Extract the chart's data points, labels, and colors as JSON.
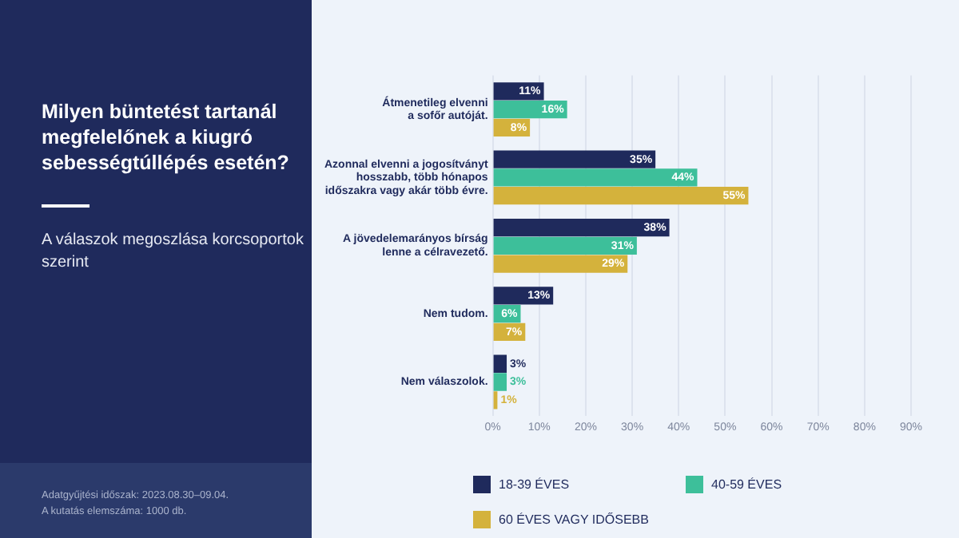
{
  "chart_data": {
    "type": "bar",
    "orientation": "horizontal",
    "title": "Milyen büntetést tartanál megfelelőnek a kiugró sebességtúllépés esetén?",
    "subtitle": "A válaszok megoszlása korcsoportok szerint",
    "categories": [
      "Átmenetileg elvenni\na sofőr autóját.",
      "Azonnal elvenni a jogosítványt\nhosszabb, több hónapos\nidőszakra vagy akár több évre.",
      "A jövedelemarányos bírság\nlenne a célravezető.",
      "Nem tudom.",
      "Nem válaszolok."
    ],
    "series": [
      {
        "name": "18-39 ÉVES",
        "color": "#1f2a5c",
        "values": [
          11,
          35,
          38,
          13,
          3
        ],
        "value_labels": [
          "11%",
          "35%",
          "38%",
          "13%",
          "3%"
        ]
      },
      {
        "name": "40-59 ÉVES",
        "color": "#3dbf9a",
        "values": [
          16,
          44,
          31,
          6,
          3
        ],
        "value_labels": [
          "16%",
          "44%",
          "31%",
          "6%",
          "3%"
        ]
      },
      {
        "name": "60 ÉVES VAGY IDŐSEBB",
        "color": "#d4b23c",
        "values": [
          8,
          55,
          29,
          7,
          1
        ],
        "value_labels": [
          "8%",
          "55%",
          "29%",
          "7%",
          "1%"
        ]
      }
    ],
    "xlim": [
      0,
      90
    ],
    "xticks": [
      {
        "value": 0,
        "label": "0%"
      },
      {
        "value": 10,
        "label": "10%"
      },
      {
        "value": 20,
        "label": "20%"
      },
      {
        "value": 30,
        "label": "30%"
      },
      {
        "value": 40,
        "label": "40%"
      },
      {
        "value": 50,
        "label": "50%"
      },
      {
        "value": 60,
        "label": "60%"
      },
      {
        "value": 70,
        "label": "70%"
      },
      {
        "value": 80,
        "label": "80%"
      },
      {
        "value": 90,
        "label": "90%"
      }
    ],
    "grid": "x",
    "legend": "bottom",
    "annotations": [
      "Adatgyűjtési időszak: 2023.08.30–09.04.",
      "A kutatás elemszáma: 1000 db."
    ]
  }
}
